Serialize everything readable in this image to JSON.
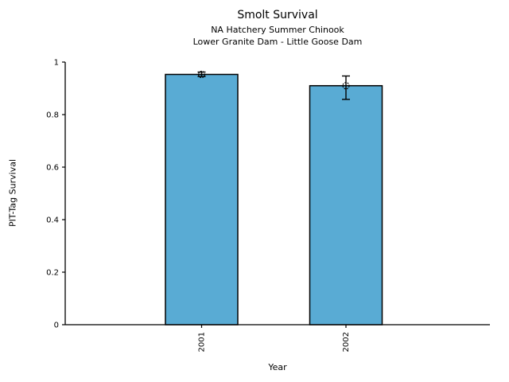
{
  "chart_data": {
    "type": "bar",
    "title": "Smolt Survival",
    "subtitle1": "NA Hatchery Summer Chinook",
    "subtitle2": "Lower Granite Dam - Little Goose Dam",
    "xlabel": "Year",
    "ylabel": "PIT-Tag Survival",
    "categories": [
      "2001",
      "2002"
    ],
    "values": [
      0.953,
      0.91
    ],
    "error_low": [
      0.945,
      0.858
    ],
    "error_high": [
      0.962,
      0.947
    ],
    "ylim": [
      0,
      1
    ],
    "yticks": [
      0,
      0.2,
      0.4,
      0.6,
      0.8,
      1
    ],
    "ytick_labels": [
      "0",
      "0.2",
      "0.4",
      "0.6",
      "0.8",
      "1"
    ],
    "bar_color": "#59ABD4",
    "bar_edge_color": "#000000",
    "axis_color": "#000000",
    "background_color": "#ffffff",
    "grid": false,
    "legend": null
  }
}
